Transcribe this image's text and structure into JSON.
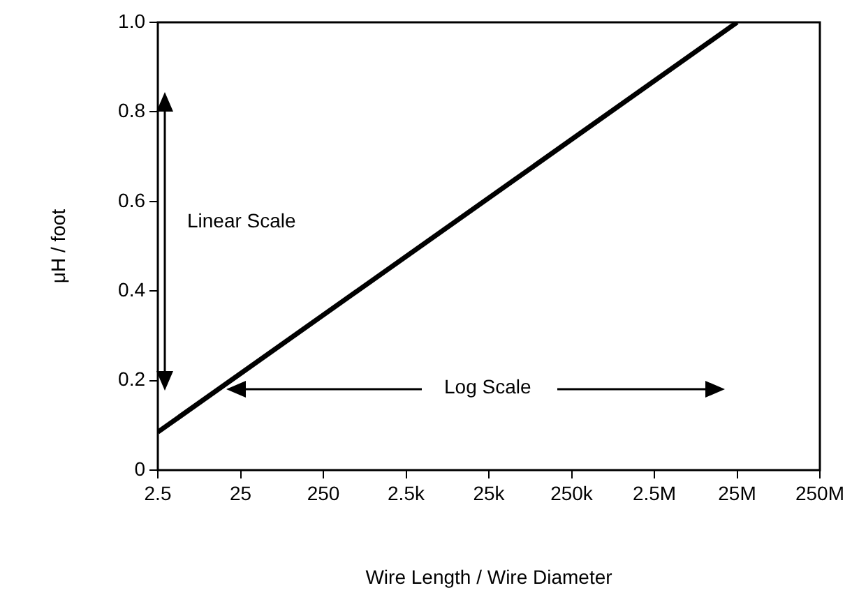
{
  "chart_data": {
    "type": "line",
    "xlabel": "Wire Length / Wire Diameter",
    "ylabel": "μH / foot",
    "log": "x",
    "grid": false,
    "legend": false,
    "marker": "none",
    "line_style": "solid",
    "series": [
      {
        "color": "#000000",
        "x": [
          2.5,
          25000000
        ],
        "values": [
          0.085,
          1.0
        ]
      }
    ],
    "xlim": [
      2.5,
      250000000
    ],
    "xticks": [
      2.5,
      25,
      250,
      {
        "value": 2500,
        "label": "2.5k"
      },
      {
        "value": 25000,
        "label": "25k"
      },
      {
        "value": 250000,
        "label": "250k"
      },
      {
        "value": 2500000,
        "label": "2.5M"
      },
      {
        "value": 25000000,
        "label": "25M"
      },
      {
        "value": 250000000,
        "label": "250M"
      }
    ],
    "ylim": [
      0,
      1
    ],
    "yticks": [
      0,
      0.2,
      0.4,
      0.6,
      0.8,
      {
        "value": 1,
        "label": "1.0"
      }
    ],
    "annotations": [
      "Linear Scale",
      "Log Scale"
    ]
  }
}
